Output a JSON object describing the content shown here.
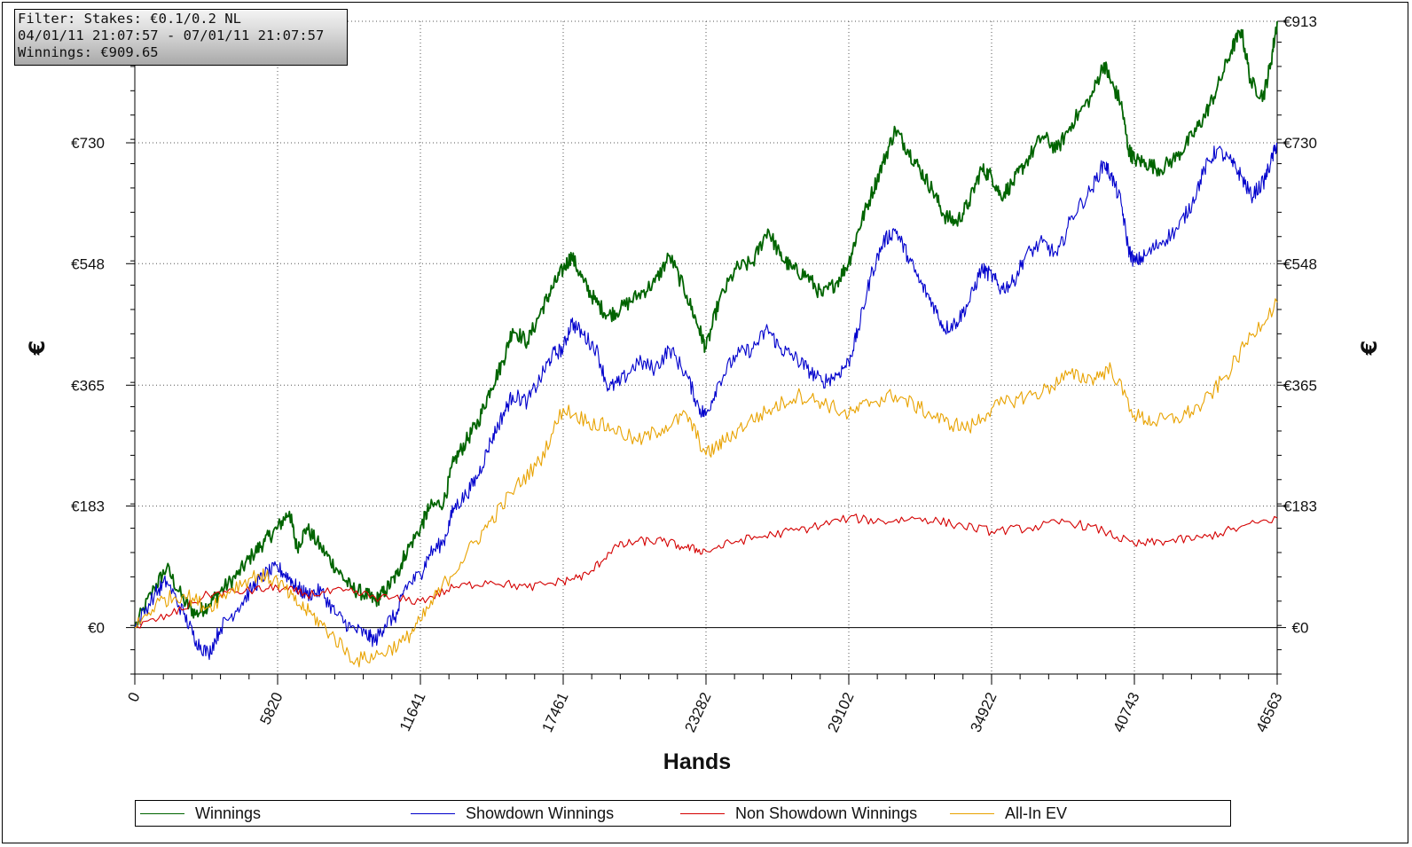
{
  "filter_box": {
    "line1": "Filter: Stakes: €0.1/0.2 NL",
    "line2": "04/01/11 21:07:57 - 07/01/11 21:07:57",
    "line3": "Winnings: €909.65"
  },
  "chart_data": {
    "type": "line",
    "xlabel": "Hands",
    "ylabel": "€",
    "xlim": [
      0,
      46563
    ],
    "ylim": [
      -70,
      913
    ],
    "x_ticks": [
      0,
      5820,
      11641,
      17461,
      23282,
      29102,
      34922,
      40743,
      46563
    ],
    "y_ticks": [
      0,
      183,
      365,
      548,
      730,
      913
    ],
    "y_tick_labels": [
      "€0",
      "€183",
      "€365",
      "€548",
      "€730",
      "€913"
    ],
    "grid": true,
    "legend_position": "bottom",
    "series": [
      {
        "name": "Winnings",
        "color": "#006400",
        "x": [
          0,
          800,
          1300,
          2000,
          2500,
          3000,
          3500,
          4200,
          4800,
          5300,
          5820,
          6300,
          6600,
          7000,
          7600,
          8200,
          8800,
          9400,
          9800,
          10200,
          10700,
          11000,
          11641,
          12000,
          12600,
          13000,
          13500,
          14000,
          14500,
          15000,
          15400,
          16000,
          16600,
          17000,
          17461,
          17800,
          18300,
          18800,
          19300,
          19800,
          20500,
          21200,
          21800,
          22500,
          23000,
          23282,
          23800,
          24500,
          25200,
          25800,
          26300,
          26800,
          27400,
          28000,
          28600,
          29102,
          29500,
          30000,
          30500,
          31000,
          31500,
          32000,
          32500,
          33000,
          33500,
          34000,
          34500,
          34922,
          35300,
          35800,
          36300,
          37000,
          37600,
          38200,
          39000,
          39500,
          39800,
          40200,
          40500,
          40743,
          41200,
          41800,
          42500,
          43100,
          43600,
          44100,
          44700,
          45100,
          45500,
          46000,
          46300,
          46563
        ],
        "y": [
          0,
          60,
          90,
          40,
          20,
          35,
          55,
          80,
          110,
          130,
          150,
          175,
          120,
          150,
          120,
          90,
          60,
          50,
          40,
          55,
          80,
          110,
          150,
          180,
          190,
          250,
          280,
          310,
          360,
          400,
          450,
          430,
          480,
          510,
          540,
          560,
          520,
          490,
          470,
          480,
          500,
          520,
          560,
          500,
          450,
          420,
          490,
          540,
          550,
          600,
          560,
          540,
          530,
          500,
          520,
          550,
          600,
          650,
          700,
          750,
          720,
          690,
          660,
          620,
          610,
          640,
          690,
          680,
          650,
          670,
          700,
          740,
          720,
          760,
          800,
          850,
          820,
          790,
          720,
          705,
          700,
          690,
          710,
          740,
          770,
          810,
          870,
          900,
          820,
          800,
          850,
          913
        ]
      },
      {
        "name": "Showdown Winnings",
        "color": "#0000cc",
        "x": [
          0,
          800,
          1300,
          2000,
          2500,
          3000,
          3500,
          4200,
          4800,
          5300,
          5820,
          6300,
          6600,
          7000,
          7600,
          8200,
          8800,
          9400,
          9800,
          10200,
          10700,
          11000,
          11641,
          12000,
          12600,
          13000,
          13500,
          14000,
          14500,
          15000,
          15400,
          16000,
          16600,
          17000,
          17461,
          17800,
          18300,
          18800,
          19300,
          19800,
          20500,
          21200,
          21800,
          22500,
          23000,
          23282,
          23800,
          24500,
          25200,
          25800,
          26300,
          26800,
          27400,
          28000,
          28600,
          29102,
          29500,
          30000,
          30500,
          31000,
          31500,
          32000,
          32500,
          33000,
          33500,
          34000,
          34500,
          34922,
          35300,
          35800,
          36300,
          37000,
          37600,
          38200,
          39000,
          39500,
          39800,
          40200,
          40500,
          40743,
          41200,
          41800,
          42500,
          43100,
          43600,
          44100,
          44700,
          45100,
          45500,
          46000,
          46300,
          46563
        ],
        "y": [
          0,
          50,
          70,
          20,
          -20,
          -40,
          0,
          30,
          60,
          80,
          90,
          75,
          60,
          50,
          55,
          20,
          0,
          -10,
          -20,
          5,
          20,
          60,
          80,
          110,
          130,
          180,
          200,
          230,
          280,
          320,
          350,
          340,
          380,
          410,
          420,
          460,
          440,
          420,
          360,
          370,
          400,
          390,
          420,
          380,
          330,
          320,
          370,
          410,
          420,
          450,
          420,
          410,
          390,
          370,
          380,
          400,
          450,
          530,
          580,
          600,
          560,
          520,
          490,
          450,
          460,
          490,
          540,
          530,
          510,
          520,
          560,
          580,
          560,
          620,
          660,
          700,
          680,
          640,
          570,
          550,
          560,
          580,
          600,
          640,
          690,
          720,
          700,
          680,
          650,
          670,
          700,
          730
        ]
      },
      {
        "name": "Non Showdown Winnings",
        "color": "#d40000",
        "x": [
          0,
          1500,
          3000,
          4500,
          5820,
          7000,
          8500,
          10000,
          11641,
          13000,
          14500,
          16000,
          17461,
          18500,
          19500,
          20500,
          21500,
          22500,
          23282,
          24500,
          26000,
          27500,
          29102,
          30500,
          32000,
          33500,
          34922,
          36500,
          38000,
          39500,
          40743,
          42000,
          43500,
          45000,
          46563
        ],
        "y": [
          0,
          20,
          50,
          55,
          60,
          50,
          55,
          45,
          40,
          60,
          70,
          60,
          70,
          80,
          120,
          130,
          130,
          120,
          115,
          130,
          140,
          150,
          165,
          160,
          165,
          155,
          145,
          150,
          160,
          145,
          125,
          130,
          135,
          150,
          165
        ]
      },
      {
        "name": "All-In EV",
        "color": "#e8a200",
        "x": [
          0,
          1000,
          2000,
          3000,
          4000,
          5000,
          5820,
          6500,
          7200,
          8000,
          9000,
          10000,
          11000,
          11641,
          12500,
          13500,
          14500,
          15500,
          16500,
          17461,
          18500,
          19500,
          20500,
          21500,
          22500,
          23282,
          24000,
          25000,
          26000,
          27000,
          28000,
          29102,
          30000,
          31000,
          32000,
          33000,
          34000,
          34922,
          36000,
          37000,
          38000,
          39000,
          39800,
          40743,
          41500,
          42500,
          43500,
          44500,
          45500,
          46563
        ],
        "y": [
          0,
          40,
          50,
          30,
          60,
          80,
          70,
          40,
          20,
          -10,
          -50,
          -40,
          -20,
          10,
          60,
          110,
          160,
          210,
          250,
          330,
          310,
          300,
          280,
          300,
          320,
          260,
          280,
          310,
          330,
          350,
          340,
          320,
          340,
          350,
          330,
          310,
          300,
          330,
          345,
          355,
          380,
          375,
          390,
          320,
          310,
          315,
          335,
          380,
          440,
          490
        ]
      }
    ]
  },
  "y_axis_right_labels": [
    "€0",
    "€183",
    "€365",
    "€548",
    "€730",
    "€913"
  ]
}
